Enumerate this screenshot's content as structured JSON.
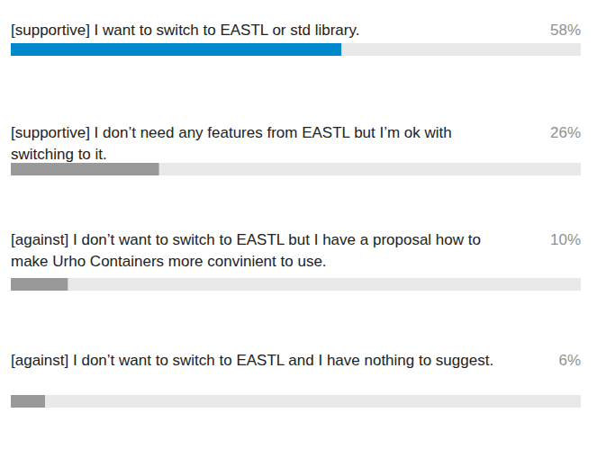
{
  "chart_data": {
    "type": "bar",
    "orientation": "horizontal",
    "categories": [
      "[supportive] I want to switch to EASTL or std library.",
      "[supportive] I don’t need any features from EASTL but I’m ok with switching to it.",
      "[against] I don’t want to switch to EASTL but I have a proposal how to make Urho Containers more convinient to use.",
      "[against] I don’t want to switch to EASTL and I have nothing to suggest."
    ],
    "values": [
      58,
      26,
      10,
      6
    ],
    "value_labels": [
      "58%",
      "26%",
      "10%",
      "6%"
    ],
    "colors": [
      "#0088cc",
      "#999999",
      "#999999",
      "#999999"
    ],
    "xlim": [
      0,
      100
    ],
    "tick_labels": false,
    "data_labels": true,
    "grid": false
  }
}
